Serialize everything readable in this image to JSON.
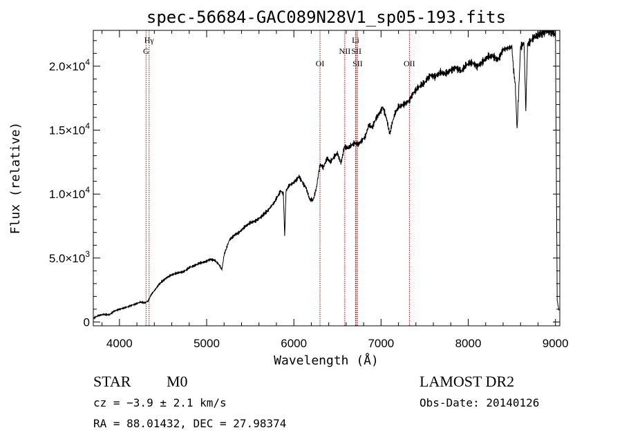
{
  "chart_data": {
    "type": "line",
    "title": "spec-56684-GAC089N28V1_sp05-193.fits",
    "xlabel": "Wavelength (Å)",
    "ylabel": "Flux (relative)",
    "xlim": [
      3700,
      9050
    ],
    "ylim": [
      -300,
      22800
    ],
    "x_ticks": [
      {
        "value": 4000,
        "label": "4000"
      },
      {
        "value": 5000,
        "label": "5000"
      },
      {
        "value": 6000,
        "label": "6000"
      },
      {
        "value": 7000,
        "label": "7000"
      },
      {
        "value": 8000,
        "label": "8000"
      },
      {
        "value": 9000,
        "label": "9000"
      }
    ],
    "y_ticks": [
      {
        "value": 0,
        "label": "0",
        "mant": "",
        "exp": ""
      },
      {
        "value": 5000,
        "label": "5.0×10³",
        "mant": "5.0×10",
        "exp": "3"
      },
      {
        "value": 10000,
        "label": "1.0×10⁴",
        "mant": "1.0×10",
        "exp": "4"
      },
      {
        "value": 15000,
        "label": "1.5×10⁴",
        "mant": "1.5×10",
        "exp": "4"
      },
      {
        "value": 20000,
        "label": "2.0×10⁴",
        "mant": "2.0×10",
        "exp": "4"
      }
    ],
    "grid": false,
    "spectrum": {
      "x": [
        3700,
        3760,
        3820,
        3880,
        3940,
        4000,
        4060,
        4120,
        4180,
        4240,
        4290,
        4330,
        4360,
        4400,
        4450,
        4500,
        4560,
        4620,
        4680,
        4740,
        4800,
        4860,
        4920,
        4980,
        5040,
        5100,
        5150,
        5175,
        5200,
        5260,
        5320,
        5380,
        5440,
        5500,
        5560,
        5620,
        5700,
        5780,
        5850,
        5880,
        5895,
        5910,
        5950,
        6000,
        6060,
        6100,
        6140,
        6180,
        6220,
        6260,
        6280,
        6300,
        6340,
        6380,
        6420,
        6460,
        6500,
        6540,
        6560,
        6580,
        6620,
        6660,
        6700,
        6740,
        6780,
        6820,
        6860,
        6900,
        6940,
        6980,
        7020,
        7060,
        7100,
        7130,
        7160,
        7200,
        7260,
        7320,
        7380,
        7440,
        7500,
        7560,
        7620,
        7680,
        7740,
        7800,
        7860,
        7920,
        7980,
        8040,
        8100,
        8160,
        8220,
        8280,
        8340,
        8400,
        8450,
        8500,
        8520,
        8540,
        8560,
        8600,
        8640,
        8660,
        8680,
        8720,
        8760,
        8800,
        8850,
        8900,
        8950,
        9000,
        9020,
        9040
      ],
      "y": [
        300,
        500,
        600,
        550,
        850,
        1000,
        1100,
        1250,
        1400,
        1550,
        1500,
        1650,
        2100,
        2450,
        2900,
        3250,
        3550,
        3750,
        3850,
        3950,
        4250,
        4400,
        4600,
        4700,
        4900,
        4800,
        4400,
        4100,
        5250,
        6400,
        6800,
        7050,
        7450,
        7750,
        7900,
        8200,
        8700,
        9400,
        10250,
        10000,
        6600,
        10250,
        10700,
        10900,
        11400,
        10900,
        10500,
        9600,
        9500,
        10500,
        11500,
        12300,
        12100,
        12800,
        12500,
        12900,
        13200,
        12400,
        13000,
        13700,
        13600,
        13800,
        14000,
        13900,
        14200,
        14500,
        15400,
        15200,
        15900,
        16300,
        16800,
        16000,
        14700,
        15600,
        16300,
        16800,
        17000,
        17300,
        18000,
        18400,
        18700,
        19300,
        19200,
        19500,
        19400,
        19700,
        19900,
        19600,
        20100,
        20300,
        20000,
        20300,
        20700,
        20800,
        20500,
        21300,
        21400,
        21500,
        19700,
        18500,
        15000,
        21500,
        21800,
        16500,
        21700,
        22000,
        22300,
        22400,
        22600,
        22800,
        22700,
        22500,
        1700,
        900
      ],
      "color": "#000000"
    },
    "emission_lines": [
      {
        "name": "Hγ",
        "wavelength": 4340,
        "label_row": 1
      },
      {
        "name": "G",
        "wavelength": 4305,
        "label_row": 2
      },
      {
        "name": "OI",
        "wavelength": 6300,
        "label_row": 3
      },
      {
        "name": "NII",
        "wavelength": 6584,
        "label_row": 2
      },
      {
        "name": "Li",
        "wavelength": 6708,
        "label_row": 1
      },
      {
        "name": "SII",
        "wavelength": 6717,
        "label_row": 2
      },
      {
        "name": "SII",
        "wavelength": 6731,
        "label_row": 3
      },
      {
        "name": "OII",
        "wavelength": 7325,
        "label_row": 3
      }
    ],
    "line_color": "#c00000"
  },
  "footer": {
    "object_class": "STAR",
    "subclass": "M0",
    "survey": "LAMOST DR2",
    "cz": "cz = −3.9 ± 2.1 km/s",
    "obs_date": "Obs-Date: 20140126",
    "coords": "RA =  88.01432, DEC =  27.98374"
  }
}
